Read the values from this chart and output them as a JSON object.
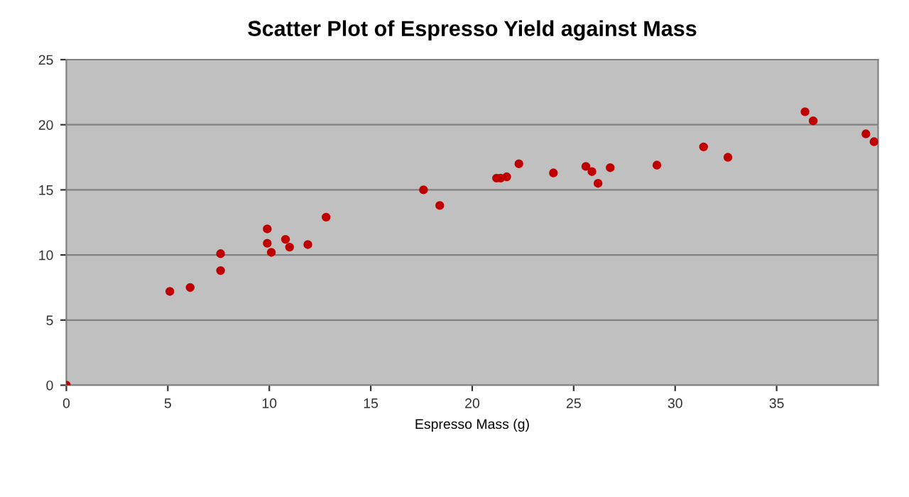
{
  "chart_data": {
    "type": "scatter",
    "title": "Scatter Plot of Espresso Yield against Mass",
    "xlabel": "Espresso Mass (g)",
    "x": [
      0,
      5.1,
      6.1,
      7.6,
      7.6,
      9.9,
      9.9,
      10.1,
      10.8,
      11.0,
      11.9,
      12.8,
      17.6,
      18.4,
      21.2,
      21.4,
      21.7,
      22.3,
      24.0,
      25.6,
      25.9,
      26.2,
      26.8,
      29.1,
      31.4,
      32.6,
      36.4,
      36.8,
      39.4,
      39.8
    ],
    "values": [
      0,
      7.2,
      7.5,
      8.8,
      10.1,
      12.0,
      10.9,
      10.2,
      11.2,
      10.6,
      10.8,
      12.9,
      15.0,
      13.8,
      15.9,
      15.9,
      16.0,
      17.0,
      16.3,
      16.8,
      16.4,
      15.5,
      16.7,
      16.9,
      18.3,
      17.5,
      21.0,
      20.3,
      19.3,
      18.7
    ],
    "color": "#c00000",
    "marker": "circle",
    "xlim": [
      0,
      40
    ],
    "xticks": [
      0,
      5,
      10,
      15,
      20,
      25,
      30,
      35
    ],
    "ylim": [
      0,
      25
    ],
    "yticks": [
      0,
      5,
      10,
      15,
      20,
      25
    ],
    "grid": "y",
    "legend": false
  }
}
